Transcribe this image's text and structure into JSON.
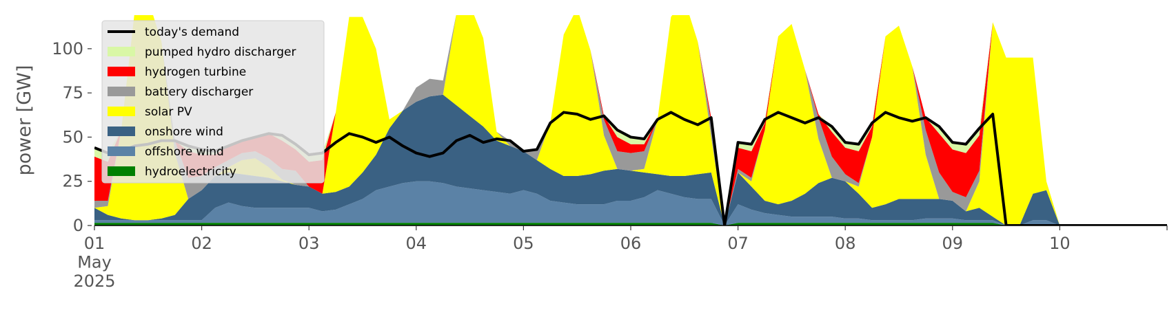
{
  "chart_data": {
    "type": "stacked_area",
    "y_label": "power [GW]",
    "xlim": [
      0,
      10
    ],
    "ylim": [
      0,
      119
    ],
    "xticks": [
      {
        "value": 0,
        "label": "01\nMay\n2025"
      },
      {
        "value": 1,
        "label": "02"
      },
      {
        "value": 2,
        "label": "03"
      },
      {
        "value": 3,
        "label": "04"
      },
      {
        "value": 4,
        "label": "05"
      },
      {
        "value": 5,
        "label": "06"
      },
      {
        "value": 6,
        "label": "07"
      },
      {
        "value": 7,
        "label": "08"
      },
      {
        "value": 8,
        "label": "09"
      },
      {
        "value": 9,
        "label": "10"
      }
    ],
    "yticks": [
      0,
      25,
      50,
      75,
      100
    ],
    "grid": false,
    "legend": "upper left",
    "x": [
      0,
      0.125,
      0.25,
      0.375,
      0.5,
      0.625,
      0.75,
      0.875,
      1,
      1.125,
      1.25,
      1.375,
      1.5,
      1.625,
      1.75,
      1.875,
      2,
      2.125,
      2.25,
      2.375,
      2.5,
      2.625,
      2.75,
      2.875,
      3,
      3.125,
      3.25,
      3.375,
      3.5,
      3.625,
      3.75,
      3.875,
      4,
      4.125,
      4.25,
      4.375,
      4.5,
      4.625,
      4.75,
      4.875,
      5,
      5.125,
      5.25,
      5.375,
      5.5,
      5.625,
      5.75,
      5.875,
      6,
      6.125,
      6.25,
      6.375,
      6.5,
      6.625,
      6.75,
      6.875,
      7,
      7.125,
      7.25,
      7.375,
      7.5,
      7.625,
      7.75,
      7.875,
      8,
      8.125,
      8.25,
      8.375,
      8.5,
      8.625,
      8.75,
      8.875,
      9,
      10
    ],
    "line": {
      "name": "today's demand",
      "color": "#000000",
      "values": [
        44,
        41,
        42,
        45,
        46,
        48,
        48,
        45,
        43,
        42,
        45,
        48,
        50,
        52,
        51,
        46,
        40,
        41,
        47,
        52,
        50,
        47,
        50,
        45,
        41,
        39,
        41,
        48,
        51,
        47,
        49,
        48,
        42,
        43,
        58,
        64,
        63,
        60,
        62,
        54,
        50,
        49,
        60,
        64,
        60,
        57,
        61,
        0,
        47,
        46,
        60,
        64,
        61,
        58,
        61,
        56,
        47,
        46,
        58,
        64,
        61,
        59,
        61,
        56,
        47,
        46,
        55,
        63,
        0,
        0,
        0,
        0,
        0,
        0
      ]
    },
    "series": [
      {
        "name": "hydroelectricity",
        "color": "#008000",
        "values": [
          1.5,
          1.5,
          1.5,
          1.5,
          1.5,
          1.5,
          1.5,
          1.5,
          1.5,
          1.5,
          1.5,
          1.5,
          1.5,
          1.5,
          1.5,
          1.5,
          1.5,
          1.5,
          1.5,
          1.5,
          1.5,
          1.5,
          1.5,
          1.5,
          1.5,
          1.5,
          1.5,
          1.5,
          1.5,
          1.5,
          1.5,
          1.5,
          1.5,
          1.5,
          1.5,
          1.5,
          1.5,
          1.5,
          1.5,
          1.5,
          1.5,
          1.5,
          1.5,
          1.5,
          1.5,
          1.5,
          1.5,
          0,
          1.5,
          1.5,
          1.5,
          1.5,
          1.5,
          1.5,
          1.5,
          1.5,
          1.5,
          1.5,
          1.5,
          1.5,
          1.5,
          1.5,
          1.5,
          1.5,
          1.5,
          1.5,
          1.5,
          1.5,
          0,
          0,
          0,
          0,
          0,
          0
        ]
      },
      {
        "name": "offshore wind",
        "color": "#5b82a6",
        "values": [
          1.5,
          1.5,
          1.5,
          1.5,
          1.5,
          1.5,
          1.5,
          1.5,
          1.5,
          8.5,
          11.5,
          9.5,
          8.5,
          8.5,
          8.5,
          8.5,
          8.5,
          6.5,
          7.5,
          10.5,
          13.5,
          18.5,
          20.5,
          22.5,
          23.5,
          23.5,
          22.5,
          20.5,
          19.5,
          18.5,
          17.5,
          16.5,
          18.5,
          16.5,
          12.5,
          11.5,
          10.5,
          10.5,
          10.5,
          12.5,
          12.5,
          14.5,
          18.5,
          16.5,
          14.5,
          13.5,
          13.5,
          0,
          10.5,
          7.5,
          5.5,
          4.5,
          3.5,
          3.5,
          3.5,
          3.5,
          2.5,
          2.5,
          1.5,
          1.5,
          1.5,
          1.5,
          2.5,
          2.5,
          2.5,
          1.5,
          1.5,
          1.5,
          0,
          0,
          3,
          3,
          0,
          0
        ]
      },
      {
        "name": "onshore wind",
        "color": "#3a6183",
        "values": [
          7,
          3,
          1,
          0,
          0,
          1,
          3,
          12,
          17,
          18,
          17,
          18,
          18,
          17,
          15,
          13,
          12,
          10,
          10,
          10,
          15,
          20,
          33,
          41,
          45,
          48,
          50,
          46,
          41,
          36,
          29,
          27,
          22,
          19,
          18,
          15,
          16,
          17,
          19,
          18,
          17,
          14,
          9,
          10,
          12,
          14,
          15,
          0,
          18,
          13,
          7,
          6,
          9,
          13,
          19,
          22,
          21,
          14,
          7,
          9,
          12,
          12,
          11,
          11,
          10,
          5,
          7,
          2,
          0,
          0,
          15,
          17,
          0,
          0
        ]
      },
      {
        "name": "solar PV",
        "color": "#ffff00",
        "values": [
          0,
          5,
          50,
          118,
          125,
          100,
          35,
          0,
          0,
          0,
          3,
          8,
          10,
          6,
          1,
          0,
          0,
          0,
          45,
          96,
          88,
          60,
          5,
          0,
          0,
          0,
          0,
          52,
          63,
          50,
          5,
          0,
          0,
          0,
          26,
          80,
          95,
          70,
          20,
          0,
          0,
          2,
          31,
          90,
          100,
          75,
          20,
          0,
          0,
          3,
          40,
          95,
          100,
          70,
          25,
          0,
          0,
          4,
          40,
          95,
          98,
          75,
          25,
          0,
          0,
          0,
          15,
          110,
          95,
          95,
          77,
          5,
          0,
          0
        ]
      },
      {
        "name": "battery discharger",
        "color": "#999999",
        "values": [
          4,
          3,
          0,
          0,
          0,
          0,
          7,
          12,
          8,
          5,
          4,
          4,
          4,
          5,
          6,
          8,
          0,
          0,
          0,
          0,
          0,
          0,
          0,
          0,
          8,
          10,
          8,
          0,
          0,
          0,
          0,
          3,
          0,
          6,
          0,
          0,
          0,
          0,
          9,
          10,
          10,
          10,
          0,
          0,
          0,
          0,
          8,
          0,
          2,
          2,
          0,
          0,
          0,
          0,
          12,
          12,
          4,
          2,
          0,
          0,
          0,
          0,
          14,
          15,
          5,
          8,
          6,
          0,
          0,
          0,
          0,
          0,
          0,
          0
        ]
      },
      {
        "name": "hydrogen turbine",
        "color": "#ff0000",
        "values": [
          25,
          22,
          0,
          0,
          0,
          0,
          0,
          15,
          12,
          7,
          8,
          7,
          8,
          14,
          16,
          12,
          14,
          19,
          0,
          0,
          0,
          0,
          0,
          0,
          0,
          0,
          0,
          0,
          0,
          0,
          0,
          0,
          0,
          0,
          0,
          0,
          0,
          0,
          2,
          8,
          5,
          4,
          0,
          0,
          0,
          0,
          3,
          0,
          12,
          15,
          4,
          0,
          0,
          0,
          2,
          14,
          15,
          18,
          6,
          0,
          0,
          0,
          7,
          22,
          24,
          25,
          20,
          0,
          0,
          0,
          0,
          0,
          0,
          0
        ]
      },
      {
        "name": "pumped hydro discharger",
        "color": "#d9f7a6",
        "values": [
          5,
          5,
          0,
          0,
          0,
          0,
          0,
          3,
          3,
          2,
          0,
          0,
          0,
          0,
          3,
          3,
          4,
          4,
          0,
          0,
          0,
          0,
          0,
          0,
          0,
          0,
          0,
          0,
          0,
          0,
          0,
          0,
          0,
          0,
          0,
          0,
          0,
          0,
          0,
          4,
          4,
          3,
          0,
          0,
          0,
          0,
          0,
          0,
          3,
          4,
          2,
          0,
          0,
          0,
          0,
          3,
          3,
          4,
          2,
          0,
          0,
          0,
          0,
          4,
          4,
          5,
          4,
          0,
          0,
          0,
          0,
          0,
          0,
          0
        ]
      }
    ]
  }
}
